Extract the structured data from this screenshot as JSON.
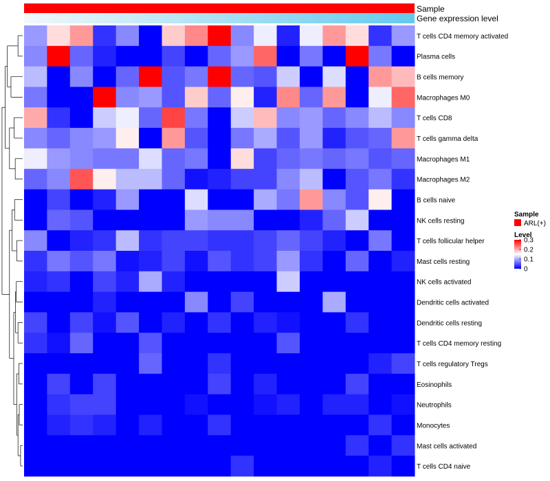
{
  "chart_data": {
    "type": "heatmap",
    "title": "",
    "annotations": [
      {
        "name": "Sample",
        "label": "Sample",
        "color": "#ff0000"
      },
      {
        "name": "Gene expression level",
        "label": "Gene expression level",
        "gradient": [
          "#f2f8fb",
          "#63c9ec"
        ]
      }
    ],
    "rows": [
      "T cells CD4 memory activated",
      "Plasma cells",
      "B cells memory",
      "Macrophages M0",
      "T cells CD8",
      "T cells gamma delta",
      "Macrophages M1",
      "Macrophages M2",
      "B cells naive",
      "NK cells resting",
      "T cells follicular helper",
      "Mast cells resting",
      "NK cells activated",
      "Dendritic cells activated",
      "Dendritic cells resting",
      "T cells CD4 memory resting",
      "T cells regulatory  Tregs",
      "Eosinophils",
      "Neutrophils",
      "Monocytes",
      "Mast cells activated",
      "T cells CD4 naive"
    ],
    "n_columns": 17,
    "values": [
      [
        0.09,
        0.17,
        0.21,
        0.03,
        0.08,
        0.0,
        0.18,
        0.22,
        0.3,
        0.08,
        0.14,
        0.02,
        0.14,
        0.21,
        0.17,
        0.03,
        0.09
      ],
      [
        0.08,
        0.3,
        0.06,
        0.02,
        0.0,
        0.0,
        0.04,
        0.0,
        0.06,
        0.09,
        0.24,
        0.0,
        0.07,
        0.0,
        0.3,
        0.07,
        0.0
      ],
      [
        0.11,
        0.0,
        0.08,
        0.0,
        0.06,
        0.3,
        0.05,
        0.07,
        0.3,
        0.06,
        0.05,
        0.12,
        0.0,
        0.13,
        0.0,
        0.21,
        0.19
      ],
      [
        0.07,
        0.0,
        0.0,
        0.3,
        0.08,
        0.09,
        0.05,
        0.18,
        0.06,
        0.16,
        0.02,
        0.22,
        0.06,
        0.21,
        0.0,
        0.14,
        0.24
      ],
      [
        0.2,
        0.03,
        0.0,
        0.12,
        0.14,
        0.06,
        0.26,
        0.07,
        0.0,
        0.12,
        0.19,
        0.08,
        0.09,
        0.06,
        0.08,
        0.11,
        0.08
      ],
      [
        0.08,
        0.06,
        0.08,
        0.09,
        0.16,
        0.0,
        0.21,
        0.05,
        0.0,
        0.07,
        0.1,
        0.05,
        0.09,
        0.02,
        0.05,
        0.06,
        0.21
      ],
      [
        0.14,
        0.09,
        0.08,
        0.07,
        0.07,
        0.13,
        0.06,
        0.07,
        0.0,
        0.17,
        0.04,
        0.06,
        0.07,
        0.06,
        0.07,
        0.05,
        0.06
      ],
      [
        0.06,
        0.08,
        0.25,
        0.16,
        0.11,
        0.11,
        0.06,
        0.01,
        0.02,
        0.04,
        0.04,
        0.08,
        0.11,
        0.0,
        0.05,
        0.07,
        0.03
      ],
      [
        0.0,
        0.04,
        0.0,
        0.02,
        0.09,
        0.0,
        0.0,
        0.13,
        0.0,
        0.0,
        0.1,
        0.07,
        0.21,
        0.08,
        0.05,
        0.16,
        0.0
      ],
      [
        0.0,
        0.06,
        0.05,
        0.0,
        0.0,
        0.0,
        0.0,
        0.09,
        0.08,
        0.08,
        0.0,
        0.0,
        0.02,
        0.06,
        0.12,
        0.0,
        0.0
      ],
      [
        0.08,
        0.0,
        0.02,
        0.03,
        0.11,
        0.03,
        0.04,
        0.04,
        0.03,
        0.03,
        0.04,
        0.06,
        0.04,
        0.02,
        0.0,
        0.07,
        0.0
      ],
      [
        0.03,
        0.07,
        0.05,
        0.07,
        0.01,
        0.02,
        0.04,
        0.01,
        0.05,
        0.03,
        0.04,
        0.09,
        0.03,
        0.0,
        0.06,
        0.0,
        0.02
      ],
      [
        0.02,
        0.03,
        0.0,
        0.04,
        0.02,
        0.1,
        0.02,
        0.0,
        0.0,
        0.0,
        0.0,
        0.12,
        0.0,
        0.0,
        0.0,
        0.0,
        0.0
      ],
      [
        0.0,
        0.0,
        0.0,
        0.02,
        0.0,
        0.0,
        0.0,
        0.08,
        0.0,
        0.04,
        0.0,
        0.0,
        0.0,
        0.1,
        0.0,
        0.0,
        0.0
      ],
      [
        0.04,
        0.0,
        0.04,
        0.01,
        0.05,
        0.0,
        0.02,
        0.0,
        0.03,
        0.0,
        0.02,
        0.01,
        0.0,
        0.0,
        0.03,
        0.0,
        0.0
      ],
      [
        0.03,
        0.01,
        0.06,
        0.0,
        0.0,
        0.05,
        0.0,
        0.0,
        0.0,
        0.0,
        0.0,
        0.05,
        0.0,
        0.0,
        0.0,
        0.0,
        0.0
      ],
      [
        0.0,
        0.0,
        0.0,
        0.0,
        0.0,
        0.06,
        0.0,
        0.0,
        0.03,
        0.0,
        0.0,
        0.0,
        0.0,
        0.0,
        0.0,
        0.02,
        0.04
      ],
      [
        0.0,
        0.04,
        0.0,
        0.04,
        0.0,
        0.0,
        0.0,
        0.0,
        0.04,
        0.0,
        0.02,
        0.0,
        0.0,
        0.0,
        0.04,
        0.0,
        0.0
      ],
      [
        0.0,
        0.03,
        0.04,
        0.04,
        0.0,
        0.0,
        0.0,
        0.01,
        0.0,
        0.0,
        0.01,
        0.02,
        0.0,
        0.02,
        0.02,
        0.0,
        0.01
      ],
      [
        0.0,
        0.02,
        0.03,
        0.02,
        0.0,
        0.02,
        0.0,
        0.0,
        0.03,
        0.0,
        0.0,
        0.0,
        0.0,
        0.0,
        0.0,
        0.03,
        0.0
      ],
      [
        0.0,
        0.0,
        0.0,
        0.0,
        0.0,
        0.0,
        0.0,
        0.0,
        0.0,
        0.0,
        0.0,
        0.0,
        0.0,
        0.0,
        0.03,
        0.0,
        0.03
      ],
      [
        0.0,
        0.0,
        0.0,
        0.0,
        0.0,
        0.0,
        0.0,
        0.0,
        0.0,
        0.03,
        0.0,
        0.0,
        0.0,
        0.0,
        0.0,
        0.02,
        0.0
      ]
    ],
    "color_scale": {
      "min": 0,
      "mid": 0.15,
      "max": 0.3,
      "low_color": "#0000ff",
      "mid_color": "#ffffff",
      "high_color": "#ff0000"
    },
    "legends": {
      "sample": {
        "title": "Sample",
        "items": [
          {
            "label": "ARL(+)",
            "color": "#ff0000"
          }
        ]
      },
      "level": {
        "title": "Level",
        "ticks": [
          0.3,
          0.2,
          0.1,
          0
        ]
      }
    }
  }
}
